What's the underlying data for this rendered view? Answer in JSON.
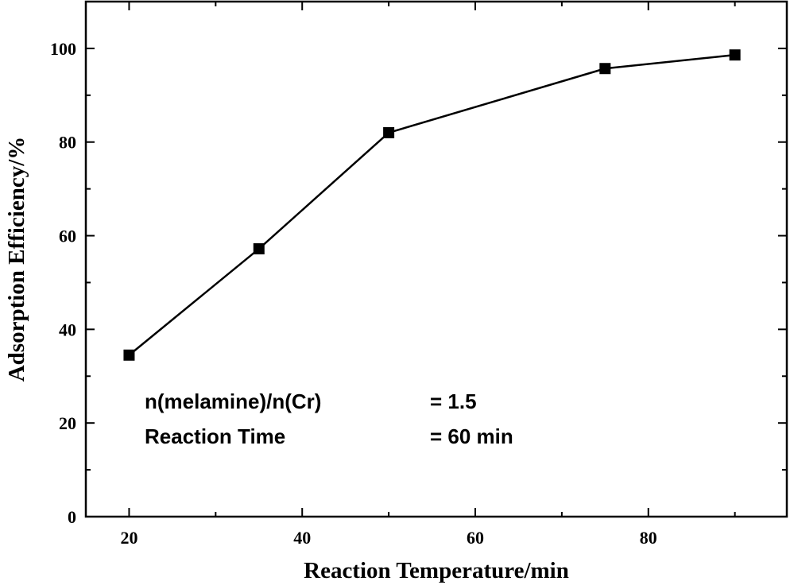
{
  "chart_data": {
    "type": "line",
    "xlabel": "Reaction Temperature/min",
    "ylabel": "Adsorption Efficiency/%",
    "xlim": [
      15,
      96
    ],
    "ylim": [
      0,
      110
    ],
    "x_ticks": [
      20,
      40,
      60,
      80
    ],
    "y_ticks": [
      0,
      20,
      40,
      60,
      80,
      100
    ],
    "grid": false,
    "marker": "square",
    "series": [
      {
        "x": [
          20,
          35,
          50,
          75,
          90
        ],
        "y": [
          34.5,
          57.2,
          82.0,
          95.7,
          98.6
        ]
      }
    ],
    "annotations": [
      {
        "label": "n(melamine)/n(Cr)",
        "value": "= 1.5"
      },
      {
        "label": "Reaction Time",
        "value": "= 60 min"
      }
    ]
  }
}
